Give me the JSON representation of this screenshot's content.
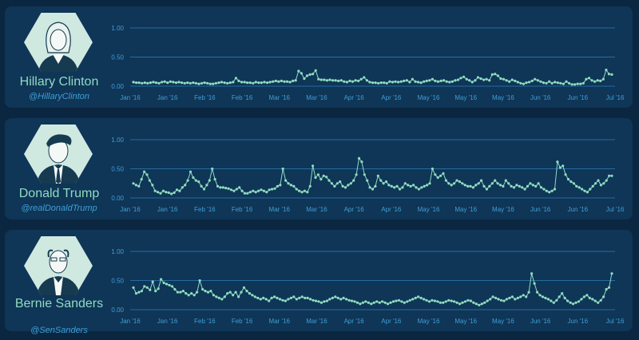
{
  "x_tick_labels": [
    "Jan '16",
    "Jan '16",
    "Feb '16",
    "Feb '16",
    "Mar '16",
    "Mar '16",
    "Apr '16",
    "Apr '16",
    "May '16",
    "May '16",
    "May '16",
    "Jun '16",
    "Jun '16",
    "Jul '16"
  ],
  "y_tick_labels": [
    "1.00",
    "0.50",
    "0.00"
  ],
  "colors": {
    "line": "#8fdcc0",
    "grid": "#2f7fb8",
    "panel": "#0f3557",
    "background": "#0b2640"
  },
  "panels": [
    {
      "name": "Hillary Clinton",
      "handle": "@HillaryClinton",
      "icon": "hillary-clinton-portrait-icon",
      "chart_data": {
        "type": "line",
        "ylim": [
          0,
          1
        ],
        "values": [
          0.07,
          0.06,
          0.06,
          0.05,
          0.06,
          0.05,
          0.06,
          0.07,
          0.06,
          0.05,
          0.07,
          0.08,
          0.06,
          0.08,
          0.07,
          0.06,
          0.07,
          0.06,
          0.05,
          0.06,
          0.05,
          0.06,
          0.05,
          0.04,
          0.05,
          0.06,
          0.05,
          0.04,
          0.04,
          0.05,
          0.06,
          0.07,
          0.06,
          0.05,
          0.06,
          0.07,
          0.14,
          0.09,
          0.07,
          0.07,
          0.06,
          0.06,
          0.05,
          0.07,
          0.06,
          0.06,
          0.07,
          0.06,
          0.07,
          0.08,
          0.09,
          0.08,
          0.09,
          0.08,
          0.08,
          0.07,
          0.09,
          0.1,
          0.26,
          0.22,
          0.13,
          0.18,
          0.2,
          0.21,
          0.27,
          0.12,
          0.11,
          0.11,
          0.1,
          0.11,
          0.1,
          0.1,
          0.09,
          0.1,
          0.08,
          0.07,
          0.09,
          0.08,
          0.1,
          0.09,
          0.12,
          0.15,
          0.1,
          0.07,
          0.06,
          0.06,
          0.05,
          0.06,
          0.06,
          0.05,
          0.08,
          0.07,
          0.08,
          0.07,
          0.08,
          0.09,
          0.1,
          0.07,
          0.12,
          0.08,
          0.07,
          0.06,
          0.08,
          0.09,
          0.1,
          0.12,
          0.09,
          0.08,
          0.09,
          0.1,
          0.08,
          0.07,
          0.08,
          0.1,
          0.11,
          0.14,
          0.16,
          0.12,
          0.1,
          0.07,
          0.1,
          0.15,
          0.13,
          0.11,
          0.12,
          0.1,
          0.2,
          0.21,
          0.18,
          0.13,
          0.12,
          0.1,
          0.08,
          0.11,
          0.09,
          0.07,
          0.05,
          0.04,
          0.06,
          0.07,
          0.09,
          0.12,
          0.1,
          0.08,
          0.06,
          0.05,
          0.08,
          0.05,
          0.07,
          0.06,
          0.05,
          0.04,
          0.08,
          0.05,
          0.03,
          0.03,
          0.04,
          0.04,
          0.05,
          0.12,
          0.14,
          0.1,
          0.08,
          0.1,
          0.09,
          0.12,
          0.28,
          0.21,
          0.2
        ]
      }
    },
    {
      "name": "Donald Trump",
      "handle": "@realDonaldTrump",
      "icon": "donald-trump-portrait-icon",
      "chart_data": {
        "type": "line",
        "ylim": [
          0,
          1
        ],
        "values": [
          0.25,
          0.22,
          0.2,
          0.32,
          0.45,
          0.4,
          0.3,
          0.22,
          0.12,
          0.1,
          0.08,
          0.12,
          0.1,
          0.09,
          0.07,
          0.09,
          0.14,
          0.12,
          0.18,
          0.22,
          0.3,
          0.45,
          0.35,
          0.3,
          0.28,
          0.2,
          0.15,
          0.22,
          0.3,
          0.5,
          0.32,
          0.2,
          0.18,
          0.18,
          0.17,
          0.16,
          0.14,
          0.12,
          0.15,
          0.18,
          0.12,
          0.08,
          0.08,
          0.1,
          0.12,
          0.1,
          0.12,
          0.14,
          0.12,
          0.1,
          0.14,
          0.15,
          0.16,
          0.2,
          0.22,
          0.5,
          0.3,
          0.25,
          0.22,
          0.2,
          0.15,
          0.12,
          0.1,
          0.12,
          0.1,
          0.2,
          0.55,
          0.35,
          0.4,
          0.32,
          0.38,
          0.36,
          0.3,
          0.25,
          0.2,
          0.25,
          0.28,
          0.2,
          0.18,
          0.22,
          0.25,
          0.3,
          0.4,
          0.68,
          0.62,
          0.4,
          0.3,
          0.18,
          0.15,
          0.2,
          0.38,
          0.3,
          0.25,
          0.28,
          0.22,
          0.2,
          0.18,
          0.2,
          0.15,
          0.18,
          0.25,
          0.22,
          0.2,
          0.22,
          0.18,
          0.15,
          0.18,
          0.2,
          0.22,
          0.25,
          0.5,
          0.4,
          0.35,
          0.38,
          0.42,
          0.3,
          0.25,
          0.22,
          0.25,
          0.3,
          0.28,
          0.25,
          0.22,
          0.2,
          0.2,
          0.18,
          0.22,
          0.25,
          0.3,
          0.2,
          0.15,
          0.2,
          0.25,
          0.3,
          0.25,
          0.22,
          0.2,
          0.3,
          0.25,
          0.2,
          0.18,
          0.22,
          0.2,
          0.18,
          0.15,
          0.2,
          0.25,
          0.22,
          0.2,
          0.25,
          0.18,
          0.15,
          0.12,
          0.1,
          0.12,
          0.15,
          0.62,
          0.52,
          0.55,
          0.4,
          0.32,
          0.28,
          0.25,
          0.2,
          0.18,
          0.15,
          0.12,
          0.1,
          0.15,
          0.2,
          0.25,
          0.3,
          0.22,
          0.25,
          0.3,
          0.38,
          0.38
        ]
      }
    },
    {
      "name": "Bernie Sanders",
      "handle": "@SenSanders",
      "icon": "bernie-sanders-portrait-icon",
      "chart_data": {
        "type": "line",
        "ylim": [
          0,
          1
        ],
        "values": [
          0.38,
          0.28,
          0.3,
          0.32,
          0.4,
          0.38,
          0.34,
          0.48,
          0.32,
          0.36,
          0.52,
          0.46,
          0.44,
          0.42,
          0.4,
          0.35,
          0.3,
          0.3,
          0.32,
          0.28,
          0.25,
          0.28,
          0.25,
          0.3,
          0.5,
          0.35,
          0.32,
          0.3,
          0.32,
          0.25,
          0.22,
          0.2,
          0.18,
          0.22,
          0.28,
          0.3,
          0.25,
          0.3,
          0.22,
          0.3,
          0.38,
          0.32,
          0.28,
          0.25,
          0.22,
          0.2,
          0.18,
          0.2,
          0.18,
          0.15,
          0.2,
          0.22,
          0.2,
          0.18,
          0.16,
          0.15,
          0.18,
          0.2,
          0.22,
          0.18,
          0.2,
          0.22,
          0.2,
          0.2,
          0.18,
          0.16,
          0.15,
          0.14,
          0.12,
          0.14,
          0.15,
          0.18,
          0.2,
          0.22,
          0.2,
          0.18,
          0.2,
          0.18,
          0.16,
          0.15,
          0.14,
          0.12,
          0.1,
          0.12,
          0.14,
          0.12,
          0.1,
          0.12,
          0.14,
          0.12,
          0.14,
          0.12,
          0.1,
          0.12,
          0.14,
          0.15,
          0.16,
          0.14,
          0.12,
          0.14,
          0.16,
          0.18,
          0.2,
          0.22,
          0.2,
          0.18,
          0.16,
          0.14,
          0.16,
          0.15,
          0.14,
          0.12,
          0.12,
          0.14,
          0.16,
          0.15,
          0.14,
          0.12,
          0.1,
          0.12,
          0.14,
          0.16,
          0.15,
          0.12,
          0.1,
          0.08,
          0.1,
          0.12,
          0.15,
          0.18,
          0.22,
          0.2,
          0.18,
          0.16,
          0.15,
          0.18,
          0.2,
          0.22,
          0.18,
          0.2,
          0.22,
          0.25,
          0.22,
          0.3,
          0.62,
          0.45,
          0.3,
          0.25,
          0.22,
          0.2,
          0.18,
          0.15,
          0.12,
          0.16,
          0.22,
          0.28,
          0.2,
          0.15,
          0.12,
          0.1,
          0.12,
          0.14,
          0.18,
          0.22,
          0.25,
          0.2,
          0.18,
          0.15,
          0.12,
          0.16,
          0.22,
          0.35,
          0.38,
          0.62
        ]
      }
    }
  ]
}
